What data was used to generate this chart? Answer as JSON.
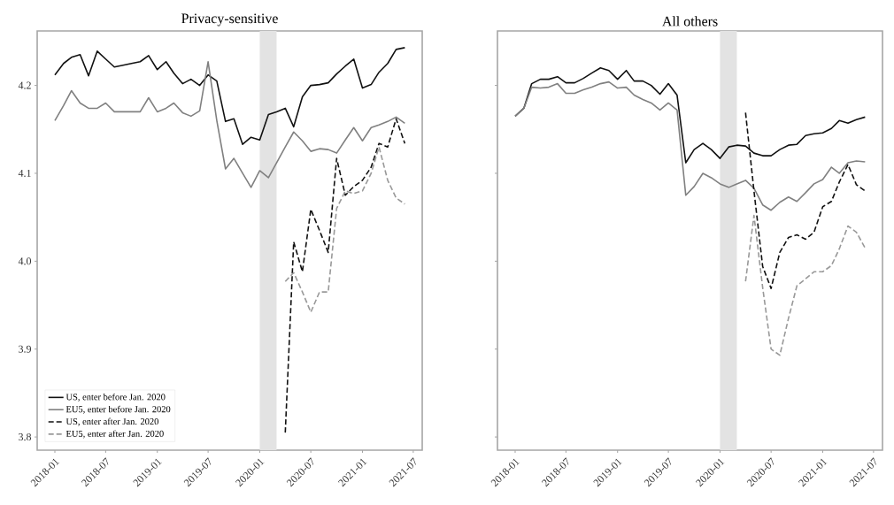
{
  "chart_data": [
    {
      "type": "line",
      "title": "Privacy-sensitive",
      "x": [
        "2018-01",
        "2018-02",
        "2018-03",
        "2018-04",
        "2018-05",
        "2018-06",
        "2018-07",
        "2018-08",
        "2018-09",
        "2018-10",
        "2018-11",
        "2018-12",
        "2019-01",
        "2019-02",
        "2019-03",
        "2019-04",
        "2019-05",
        "2019-06",
        "2019-07",
        "2019-08",
        "2019-09",
        "2019-10",
        "2019-11",
        "2019-12",
        "2020-01",
        "2020-02",
        "2020-03",
        "2020-04",
        "2020-05",
        "2020-06",
        "2020-07",
        "2020-08",
        "2020-09",
        "2020-10",
        "2020-11",
        "2020-12",
        "2021-01",
        "2021-02",
        "2021-03",
        "2021-04",
        "2021-05",
        "2021-06"
      ],
      "series": [
        {
          "name": "US, enter before Jan. 2020",
          "color": "#111111",
          "line_style": "solid",
          "values": [
            4.212,
            4.225,
            4.232,
            4.235,
            4.211,
            4.239,
            4.23,
            4.221,
            4.223,
            4.225,
            4.227,
            4.234,
            4.218,
            4.227,
            4.214,
            4.202,
            4.207,
            4.2,
            4.212,
            4.205,
            4.159,
            4.162,
            4.133,
            4.141,
            4.138,
            4.167,
            4.17,
            4.174,
            4.153,
            4.187,
            4.2,
            4.201,
            4.203,
            4.213,
            4.222,
            4.23,
            4.197,
            4.201,
            4.215,
            4.225,
            4.241,
            4.243
          ]
        },
        {
          "name": "EU5, enter before Jan. 2020",
          "color": "#808080",
          "line_style": "solid",
          "values": [
            4.16,
            4.177,
            4.194,
            4.18,
            4.174,
            4.174,
            4.18,
            4.17,
            4.17,
            4.17,
            4.17,
            4.186,
            4.17,
            4.174,
            4.18,
            4.169,
            4.165,
            4.171,
            4.227,
            4.16,
            4.105,
            4.117,
            4.1,
            4.084,
            4.103,
            4.095,
            4.112,
            4.13,
            4.147,
            4.137,
            4.125,
            4.128,
            4.127,
            4.123,
            4.138,
            4.152,
            4.137,
            4.152,
            4.155,
            4.159,
            4.164,
            4.157
          ]
        },
        {
          "name": "US, enter after Jan. 2020",
          "color": "#111111",
          "line_style": "dashed",
          "x": [
            "2020-04",
            "2020-05",
            "2020-06",
            "2020-07",
            "2020-08",
            "2020-09",
            "2020-10",
            "2020-11",
            "2020-12",
            "2021-01",
            "2021-02",
            "2021-03",
            "2021-04",
            "2021-05",
            "2021-06"
          ],
          "values": [
            3.805,
            4.022,
            3.988,
            4.059,
            4.035,
            4.01,
            4.117,
            4.075,
            4.085,
            4.092,
            4.107,
            4.134,
            4.13,
            4.162,
            4.134
          ]
        },
        {
          "name": "EU5, enter after Jan. 2020",
          "color": "#999999",
          "line_style": "dashed",
          "x": [
            "2020-04",
            "2020-05",
            "2020-06",
            "2020-07",
            "2020-08",
            "2020-09",
            "2020-10",
            "2020-11",
            "2020-12",
            "2021-01",
            "2021-02",
            "2021-03",
            "2021-04",
            "2021-05",
            "2021-06"
          ],
          "values": [
            3.977,
            3.987,
            3.965,
            3.942,
            3.965,
            3.965,
            4.06,
            4.08,
            4.077,
            4.08,
            4.1,
            4.13,
            4.092,
            4.072,
            4.065
          ]
        }
      ],
      "bands": [
        {
          "axis": "x",
          "from": "2020-01",
          "to": "2020-03",
          "color": "#e3e3e3"
        }
      ],
      "xlim": [
        "2017-10-30",
        "2021-08-02"
      ],
      "ylim": [
        3.785,
        4.262
      ],
      "xticks": [
        "2018-01",
        "2018-07",
        "2019-01",
        "2019-07",
        "2020-01",
        "2020-07",
        "2021-01",
        "2021-07"
      ],
      "yticks": [
        3.8,
        3.9,
        {
          "value": 4.0,
          "label": "4.0"
        },
        4.1,
        4.2
      ],
      "legend": "bottom left"
    },
    {
      "type": "line",
      "title": "All others",
      "x": [
        "2018-01",
        "2018-02",
        "2018-03",
        "2018-04",
        "2018-05",
        "2018-06",
        "2018-07",
        "2018-08",
        "2018-09",
        "2018-10",
        "2018-11",
        "2018-12",
        "2019-01",
        "2019-02",
        "2019-03",
        "2019-04",
        "2019-05",
        "2019-06",
        "2019-07",
        "2019-08",
        "2019-09",
        "2019-10",
        "2019-11",
        "2019-12",
        "2020-01",
        "2020-02",
        "2020-03",
        "2020-04",
        "2020-05",
        "2020-06",
        "2020-07",
        "2020-08",
        "2020-09",
        "2020-10",
        "2020-11",
        "2020-12",
        "2021-01",
        "2021-02",
        "2021-03",
        "2021-04",
        "2021-05",
        "2021-06"
      ],
      "series": [
        {
          "color": "#111111",
          "line_style": "solid",
          "values": [
            4.165,
            4.174,
            4.202,
            4.207,
            4.207,
            4.21,
            4.203,
            4.203,
            4.208,
            4.214,
            4.22,
            4.217,
            4.207,
            4.217,
            4.205,
            4.205,
            4.2,
            4.19,
            4.202,
            4.189,
            4.112,
            4.127,
            4.134,
            4.127,
            4.117,
            4.13,
            4.132,
            4.131,
            4.123,
            4.12,
            4.12,
            4.127,
            4.132,
            4.133,
            4.143,
            4.145,
            4.146,
            4.151,
            4.16,
            4.157,
            4.161,
            4.164
          ]
        },
        {
          "color": "#808080",
          "line_style": "solid",
          "values": [
            4.165,
            4.174,
            4.198,
            4.197,
            4.198,
            4.202,
            4.191,
            4.191,
            4.195,
            4.198,
            4.202,
            4.204,
            4.197,
            4.198,
            4.189,
            4.184,
            4.18,
            4.172,
            4.18,
            4.172,
            4.075,
            4.085,
            4.1,
            4.095,
            4.088,
            4.084,
            4.088,
            4.092,
            4.083,
            4.064,
            4.058,
            4.067,
            4.073,
            4.068,
            4.078,
            4.088,
            4.093,
            4.107,
            4.1,
            4.112,
            4.114,
            4.113
          ]
        },
        {
          "color": "#111111",
          "line_style": "dashed",
          "x": [
            "2020-04",
            "2020-05",
            "2020-06",
            "2020-07",
            "2020-08",
            "2020-09",
            "2020-10",
            "2020-11",
            "2020-12",
            "2021-01",
            "2021-02",
            "2021-03",
            "2021-04",
            "2021-05",
            "2021-06"
          ],
          "values": [
            4.169,
            4.08,
            3.994,
            3.969,
            4.01,
            4.027,
            4.03,
            4.025,
            4.033,
            4.062,
            4.068,
            4.09,
            4.11,
            4.087,
            4.08
          ]
        },
        {
          "color": "#999999",
          "line_style": "dashed",
          "x": [
            "2020-04",
            "2020-05",
            "2020-06",
            "2020-07",
            "2020-08",
            "2020-09",
            "2020-10",
            "2020-11",
            "2020-12",
            "2021-01",
            "2021-02",
            "2021-03",
            "2021-04",
            "2021-05",
            "2021-06"
          ],
          "values": [
            3.977,
            4.052,
            3.97,
            3.9,
            3.893,
            3.935,
            3.972,
            3.98,
            3.988,
            3.988,
            3.995,
            4.014,
            4.04,
            4.033,
            4.015
          ]
        }
      ],
      "bands": [
        {
          "axis": "x",
          "from": "2020-01",
          "to": "2020-03",
          "color": "#e3e3e3"
        }
      ],
      "xlim": [
        "2017-10-30",
        "2021-08-02"
      ],
      "ylim": [
        3.785,
        4.262
      ],
      "xticks": [
        "2018-01",
        "2018-07",
        "2019-01",
        "2019-07",
        "2020-01",
        "2020-07",
        "2021-01",
        "2021-07"
      ],
      "yticks": [
        3.8,
        3.9,
        4.0,
        4.1,
        4.2
      ],
      "tick_labels": "x"
    }
  ]
}
